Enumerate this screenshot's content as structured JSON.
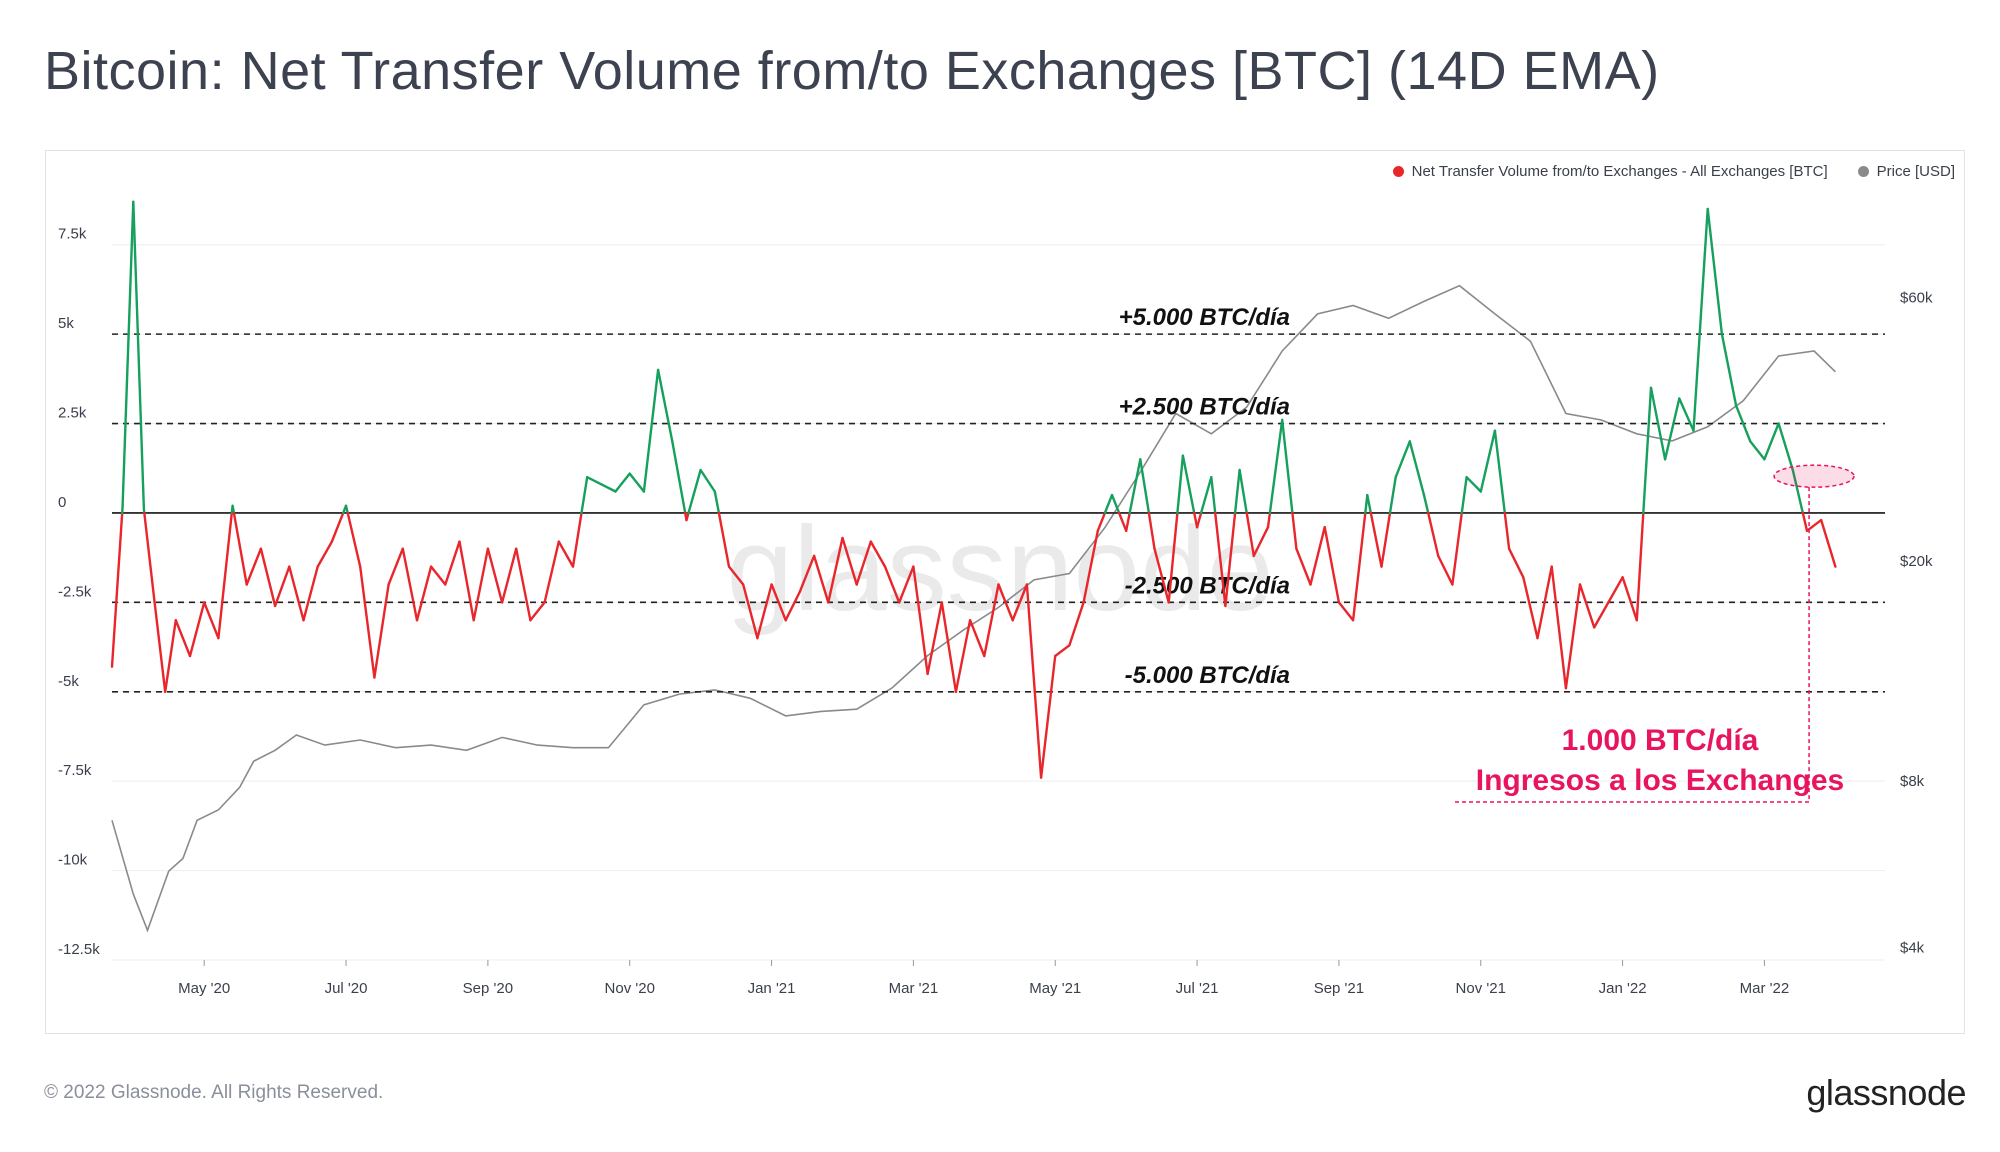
{
  "title": "Bitcoin: Net Transfer Volume from/to Exchanges [BTC] (14D EMA)",
  "footer": "© 2022 Glassnode. All Rights Reserved.",
  "brand": "glassnode",
  "watermark": "glassnode",
  "legend": [
    {
      "label": "Net Transfer Volume from/to Exchanges - All Exchanges [BTC]",
      "color": "#e8262c"
    },
    {
      "label": "Price [USD]",
      "color": "#8a8a8a"
    }
  ],
  "chart_data": {
    "type": "line",
    "title": "Bitcoin: Net Transfer Volume from/to Exchanges [BTC] (14D EMA)",
    "x_ticks": [
      "May '20",
      "Jul '20",
      "Sep '20",
      "Nov '20",
      "Jan '21",
      "Mar '21",
      "May '21",
      "Jul '21",
      "Sep '21",
      "Nov '21",
      "Jan '22",
      "Mar '22"
    ],
    "x_range_months": [
      0,
      24.3
    ],
    "y_left": {
      "ticks": [
        7500,
        5000,
        2500,
        0,
        -2500,
        -5000,
        -7500,
        -10000,
        -12500
      ],
      "tick_labels": [
        "7.5k",
        "5k",
        "2.5k",
        "0",
        "-2.5k",
        "-5k",
        "-7.5k",
        "-10k",
        "-12.5k"
      ],
      "range": [
        -12500,
        8750
      ]
    },
    "y_right": {
      "scale": "log",
      "ticks": [
        60000,
        20000,
        8000,
        4000
      ],
      "tick_labels": [
        "$60k",
        "$20k",
        "$8k",
        "$4k"
      ],
      "range": [
        3800,
        90000
      ]
    },
    "colors": {
      "positive": "#16a05d",
      "negative": "#e8262c",
      "price": "#8a8a8a",
      "annotation": "#e8145f"
    },
    "series": [
      {
        "name": "Net Transfer Volume from/to Exchanges - All Exchanges [BTC]",
        "points": [
          [
            0,
            -4300
          ],
          [
            0.15,
            200
          ],
          [
            0.3,
            8700
          ],
          [
            0.45,
            100
          ],
          [
            0.6,
            -2500
          ],
          [
            0.75,
            -5000
          ],
          [
            0.9,
            -3000
          ],
          [
            1.1,
            -4000
          ],
          [
            1.3,
            -2500
          ],
          [
            1.5,
            -3500
          ],
          [
            1.7,
            200
          ],
          [
            1.9,
            -2000
          ],
          [
            2.1,
            -1000
          ],
          [
            2.3,
            -2600
          ],
          [
            2.5,
            -1500
          ],
          [
            2.7,
            -3000
          ],
          [
            2.9,
            -1500
          ],
          [
            3.1,
            -800
          ],
          [
            3.3,
            200
          ],
          [
            3.5,
            -1500
          ],
          [
            3.7,
            -4600
          ],
          [
            3.9,
            -2000
          ],
          [
            4.1,
            -1000
          ],
          [
            4.3,
            -3000
          ],
          [
            4.5,
            -1500
          ],
          [
            4.7,
            -2000
          ],
          [
            4.9,
            -800
          ],
          [
            5.1,
            -3000
          ],
          [
            5.3,
            -1000
          ],
          [
            5.5,
            -2500
          ],
          [
            5.7,
            -1000
          ],
          [
            5.9,
            -3000
          ],
          [
            6.1,
            -2500
          ],
          [
            6.3,
            -800
          ],
          [
            6.5,
            -1500
          ],
          [
            6.7,
            1000
          ],
          [
            6.9,
            800
          ],
          [
            7.1,
            600
          ],
          [
            7.3,
            1100
          ],
          [
            7.5,
            600
          ],
          [
            7.7,
            4000
          ],
          [
            7.9,
            2000
          ],
          [
            8.1,
            -200
          ],
          [
            8.3,
            1200
          ],
          [
            8.5,
            600
          ],
          [
            8.7,
            -1500
          ],
          [
            8.9,
            -2000
          ],
          [
            9.1,
            -3500
          ],
          [
            9.3,
            -2000
          ],
          [
            9.5,
            -3000
          ],
          [
            9.7,
            -2200
          ],
          [
            9.9,
            -1200
          ],
          [
            10.1,
            -2500
          ],
          [
            10.3,
            -700
          ],
          [
            10.5,
            -2000
          ],
          [
            10.7,
            -800
          ],
          [
            10.9,
            -1500
          ],
          [
            11.1,
            -2500
          ],
          [
            11.3,
            -1500
          ],
          [
            11.5,
            -4500
          ],
          [
            11.7,
            -2500
          ],
          [
            11.9,
            -5000
          ],
          [
            12.1,
            -3000
          ],
          [
            12.3,
            -4000
          ],
          [
            12.5,
            -2000
          ],
          [
            12.7,
            -3000
          ],
          [
            12.9,
            -2000
          ],
          [
            13.1,
            -7400
          ],
          [
            13.3,
            -4000
          ],
          [
            13.5,
            -3700
          ],
          [
            13.7,
            -2500
          ],
          [
            13.9,
            -500
          ],
          [
            14.1,
            500
          ],
          [
            14.3,
            -500
          ],
          [
            14.5,
            1500
          ],
          [
            14.7,
            -1000
          ],
          [
            14.9,
            -2500
          ],
          [
            15.1,
            1600
          ],
          [
            15.3,
            -400
          ],
          [
            15.5,
            1000
          ],
          [
            15.7,
            -2600
          ],
          [
            15.9,
            1200
          ],
          [
            16.1,
            -1200
          ],
          [
            16.3,
            -400
          ],
          [
            16.5,
            2600
          ],
          [
            16.7,
            -1000
          ],
          [
            16.9,
            -2000
          ],
          [
            17.1,
            -400
          ],
          [
            17.3,
            -2500
          ],
          [
            17.5,
            -3000
          ],
          [
            17.7,
            500
          ],
          [
            17.9,
            -1500
          ],
          [
            18.1,
            1000
          ],
          [
            18.3,
            2000
          ],
          [
            18.5,
            500
          ],
          [
            18.7,
            -1200
          ],
          [
            18.9,
            -2000
          ],
          [
            19.1,
            1000
          ],
          [
            19.3,
            600
          ],
          [
            19.5,
            2300
          ],
          [
            19.7,
            -1000
          ],
          [
            19.9,
            -1800
          ],
          [
            20.1,
            -3500
          ],
          [
            20.3,
            -1500
          ],
          [
            20.5,
            -4900
          ],
          [
            20.7,
            -2000
          ],
          [
            20.9,
            -3200
          ],
          [
            21.1,
            -2500
          ],
          [
            21.3,
            -1800
          ],
          [
            21.5,
            -3000
          ],
          [
            21.7,
            3500
          ],
          [
            21.9,
            1500
          ],
          [
            22.1,
            3200
          ],
          [
            22.3,
            2300
          ],
          [
            22.5,
            8500
          ],
          [
            22.7,
            5000
          ],
          [
            22.9,
            3000
          ],
          [
            23.1,
            2000
          ],
          [
            23.3,
            1500
          ],
          [
            23.5,
            2500
          ],
          [
            23.7,
            1200
          ],
          [
            23.9,
            -500
          ],
          [
            24.1,
            -200
          ],
          [
            24.3,
            -1500
          ]
        ]
      },
      {
        "name": "Price [USD]",
        "points": [
          [
            0,
            6800
          ],
          [
            0.3,
            5000
          ],
          [
            0.5,
            4300
          ],
          [
            0.8,
            5500
          ],
          [
            1.0,
            5800
          ],
          [
            1.2,
            6800
          ],
          [
            1.5,
            7100
          ],
          [
            1.8,
            7800
          ],
          [
            2.0,
            8700
          ],
          [
            2.3,
            9100
          ],
          [
            2.6,
            9700
          ],
          [
            3.0,
            9300
          ],
          [
            3.5,
            9500
          ],
          [
            4.0,
            9200
          ],
          [
            4.5,
            9300
          ],
          [
            5.0,
            9100
          ],
          [
            5.5,
            9600
          ],
          [
            6.0,
            9300
          ],
          [
            6.5,
            9200
          ],
          [
            7.0,
            9200
          ],
          [
            7.5,
            11000
          ],
          [
            8.0,
            11500
          ],
          [
            8.5,
            11700
          ],
          [
            9.0,
            11300
          ],
          [
            9.5,
            10500
          ],
          [
            10.0,
            10700
          ],
          [
            10.5,
            10800
          ],
          [
            11.0,
            11800
          ],
          [
            11.5,
            13500
          ],
          [
            12.0,
            15000
          ],
          [
            12.5,
            16500
          ],
          [
            13.0,
            18500
          ],
          [
            13.5,
            19000
          ],
          [
            14.0,
            23000
          ],
          [
            14.5,
            29000
          ],
          [
            15.0,
            37000
          ],
          [
            15.5,
            34000
          ],
          [
            16.0,
            38000
          ],
          [
            16.5,
            48000
          ],
          [
            17.0,
            56000
          ],
          [
            17.5,
            58000
          ],
          [
            18.0,
            55000
          ],
          [
            18.5,
            59000
          ],
          [
            19.0,
            63000
          ],
          [
            19.5,
            56000
          ],
          [
            20.0,
            50000
          ],
          [
            20.5,
            37000
          ],
          [
            21.0,
            36000
          ],
          [
            21.5,
            34000
          ],
          [
            22.0,
            33000
          ],
          [
            22.5,
            35000
          ],
          [
            23.0,
            39000
          ],
          [
            23.5,
            47000
          ],
          [
            24.0,
            48000
          ],
          [
            24.3,
            44000
          ]
        ]
      }
    ],
    "reference_lines": [
      {
        "y": 5000,
        "label": "+5.000 BTC/día"
      },
      {
        "y": 2500,
        "label": "+2.500 BTC/día"
      },
      {
        "y": -2500,
        "label": "-2.500 BTC/día"
      },
      {
        "y": -5000,
        "label": "-5.000 BTC/día"
      }
    ],
    "annotation": {
      "line1": "1.000 BTC/día",
      "line2": "Ingresos a los Exchanges",
      "value": 1000
    }
  }
}
